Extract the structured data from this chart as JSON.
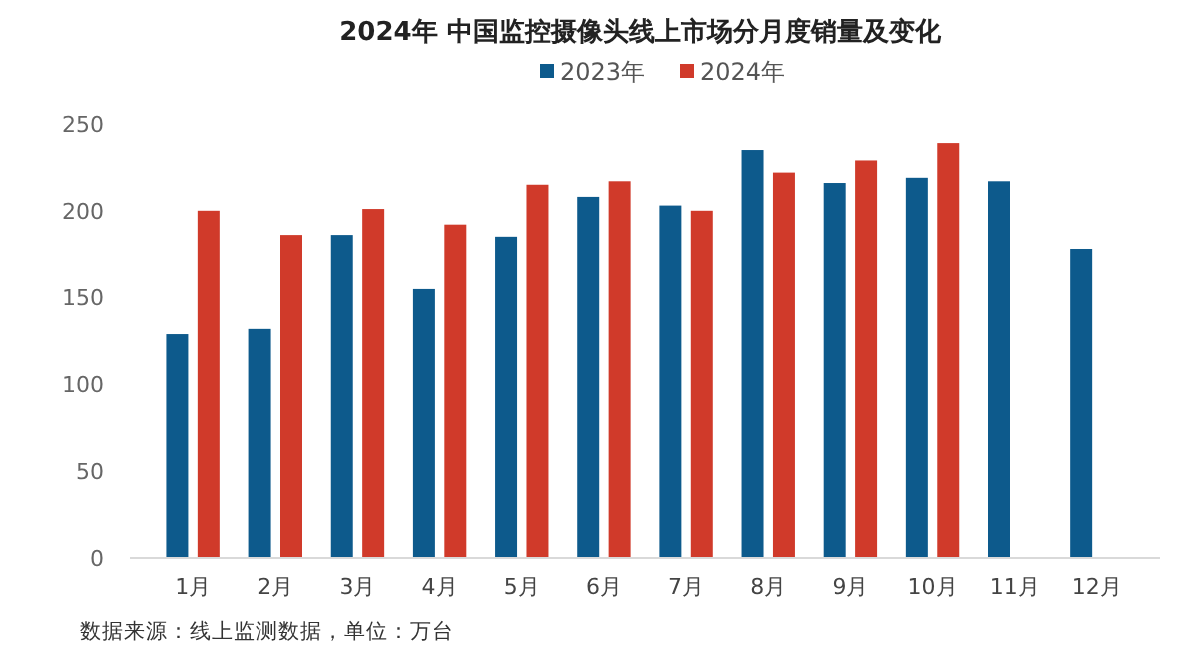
{
  "chart_data": {
    "type": "bar",
    "title": "2024年 中国监控摄像头线上市场分月度销量及变化",
    "categories": [
      "1月",
      "2月",
      "3月",
      "4月",
      "5月",
      "6月",
      "7月",
      "8月",
      "9月",
      "10月",
      "11月",
      "12月"
    ],
    "series": [
      {
        "name": "2023年",
        "color": "#0d5a8c",
        "values": [
          129,
          132,
          186,
          155,
          185,
          208,
          203,
          235,
          216,
          219,
          217,
          178
        ]
      },
      {
        "name": "2024年",
        "color": "#d03a2a",
        "values": [
          200,
          186,
          201,
          192,
          215,
          217,
          200,
          222,
          229,
          239,
          null,
          null
        ]
      }
    ],
    "ylim": [
      0,
      250
    ],
    "yticks": [
      0,
      50,
      100,
      150,
      200,
      250
    ],
    "grid": false,
    "legend": "top",
    "annotations": [
      "数据来源：线上监测数据，单位：万台"
    ]
  }
}
